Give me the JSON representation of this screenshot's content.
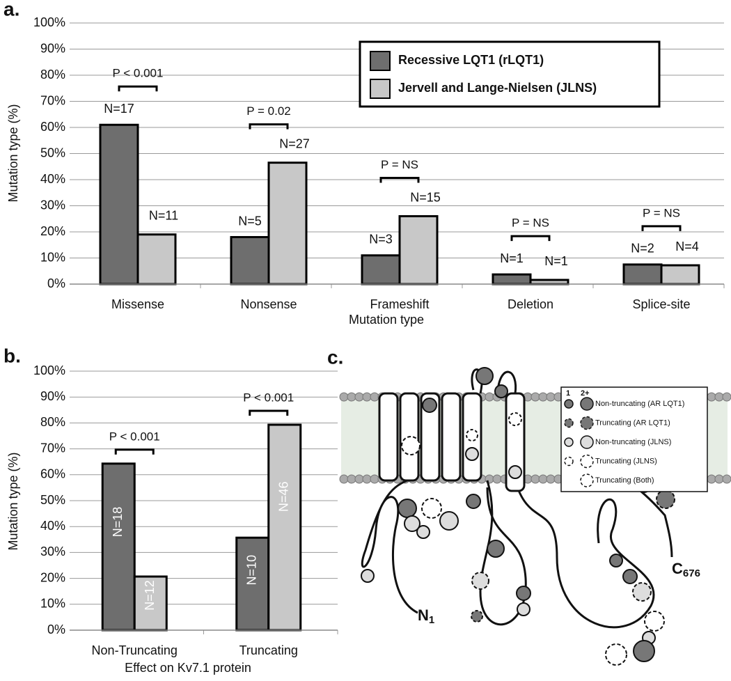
{
  "chart_data": [
    {
      "type": "bar",
      "panel_label": "a.",
      "x_label": "Mutation type",
      "y_label": "Mutation type (%)",
      "categories": [
        "Missense",
        "Nonsense",
        "Frameshift",
        "Deletion",
        "Splice-site"
      ],
      "series": [
        {
          "name": "Recessive LQT1 (rLQT1)",
          "color": "#6e6e6e",
          "values": [
            61,
            18,
            11,
            3.7,
            7.5
          ],
          "labels": [
            "N=17",
            "N=5",
            "N=3",
            "N=1",
            "N=2"
          ]
        },
        {
          "name": "Jervell and Lange-Nielsen (JLNS)",
          "color": "#c8c8c8",
          "values": [
            19,
            46.5,
            26,
            1.6,
            7.2
          ],
          "labels": [
            "N=11",
            "N=27",
            "N=15",
            "N=1",
            "N=4"
          ]
        }
      ],
      "p_values": [
        "P < 0.001",
        "P = 0.02",
        "P = NS",
        "P = NS",
        "P = NS"
      ],
      "ylim": [
        0,
        100
      ],
      "yticks": [
        {
          "value": 0,
          "label": "0%"
        },
        {
          "value": 10,
          "label": "10%"
        },
        {
          "value": 20,
          "label": "20%"
        },
        {
          "value": 30,
          "label": "30%"
        },
        {
          "value": 40,
          "label": "40%"
        },
        {
          "value": 50,
          "label": "50%"
        },
        {
          "value": 60,
          "label": "60%"
        },
        {
          "value": 70,
          "label": "70%"
        },
        {
          "value": 80,
          "label": "80%"
        },
        {
          "value": 90,
          "label": "90%"
        },
        {
          "value": 100,
          "label": "100%"
        }
      ],
      "grid": true,
      "legend": "upper right"
    },
    {
      "type": "bar",
      "panel_label": "b.",
      "x_label": "Effect on Kv7.1 protein",
      "y_label": "Mutation type (%)",
      "categories": [
        "Non-Truncating",
        "Truncating"
      ],
      "series": [
        {
          "name": "Recessive LQT1 (rLQT1)",
          "color": "#6e6e6e",
          "values": [
            64.3,
            35.7
          ],
          "labels": [
            "N=18",
            "N=10"
          ]
        },
        {
          "name": "Jervell and Lange-Nielsen (JLNS)",
          "color": "#c8c8c8",
          "values": [
            20.7,
            79.3
          ],
          "labels": [
            "N=12",
            "N=46"
          ]
        }
      ],
      "p_values": [
        "P < 0.001",
        "P < 0.001"
      ],
      "ylim": [
        0,
        100
      ],
      "yticks": [
        {
          "value": 0,
          "label": "0%"
        },
        {
          "value": 10,
          "label": "10%"
        },
        {
          "value": 20,
          "label": "20%"
        },
        {
          "value": 30,
          "label": "30%"
        },
        {
          "value": 40,
          "label": "40%"
        },
        {
          "value": 50,
          "label": "50%"
        },
        {
          "value": 60,
          "label": "60%"
        },
        {
          "value": 70,
          "label": "70%"
        },
        {
          "value": 80,
          "label": "80%"
        },
        {
          "value": 90,
          "label": "90%"
        },
        {
          "value": 100,
          "label": "100%"
        }
      ],
      "grid": true
    }
  ],
  "diagram": {
    "panel_label": "c.",
    "legend_headers": [
      "1",
      "2+"
    ],
    "legend": [
      "Non-truncating (AR LQT1)",
      "Truncating (AR LQT1)",
      "Non-truncating (JLNS)",
      "Truncating (JLNS)",
      "Truncating (Both)"
    ],
    "n_terminus": "N",
    "n_subscript": "1",
    "c_terminus": "C",
    "c_subscript": "676"
  }
}
